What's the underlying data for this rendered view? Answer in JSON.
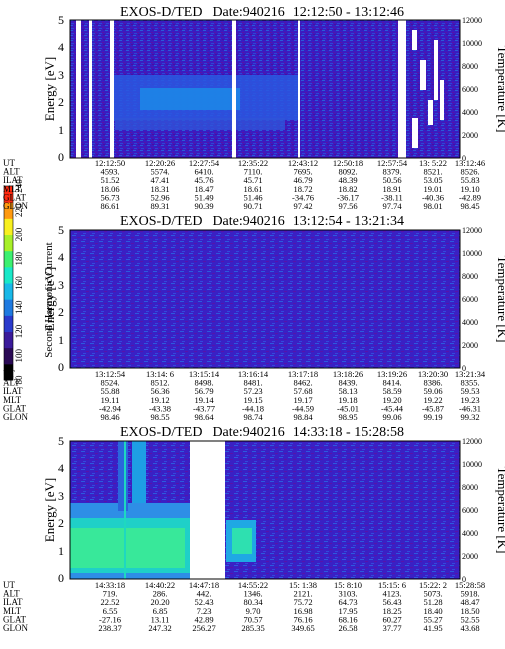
{
  "colorbar": {
    "label": "Second Harmonic Current",
    "ticks": [
      "80",
      "100",
      "120",
      "140",
      "160",
      "180",
      "200",
      "220",
      "240"
    ],
    "colors": [
      "#000000",
      "#2a0a55",
      "#3a1a9a",
      "#2a3acc",
      "#1f7ae0",
      "#19b8e8",
      "#19e8c8",
      "#3cf070",
      "#a8f028",
      "#f8f020",
      "#ff9a10",
      "#ff2a10"
    ]
  },
  "panels": [
    {
      "title": "EXOS-D/TED",
      "date": "Date:940216",
      "time_range": "12:12:50 - 13:12:46",
      "ylabel": "Energy [eV]",
      "y2label": "Temperature [K]",
      "yticks": [
        "0",
        "1",
        "2",
        "3",
        "4",
        "5"
      ],
      "y2ticks": [
        "0",
        "2000",
        "4000",
        "6000",
        "8000",
        "10000",
        "12000"
      ],
      "row_labels": [
        "UT",
        "ALT",
        "ILAT",
        "MLT",
        "GLAT",
        "GLON"
      ],
      "columns": [
        [
          "12:12:50",
          "4593.",
          "51.52",
          "18.06",
          "56.73",
          "86.61"
        ],
        [
          "12:20:26",
          "5574.",
          "47.41",
          "18.31",
          "52.96",
          "89.31"
        ],
        [
          "12:27:54",
          "6410.",
          "45.76",
          "18.47",
          "51.49",
          "90.39"
        ],
        [
          "12:35:22",
          "7110.",
          "45.71",
          "18.61",
          "51.46",
          "90.71"
        ],
        [
          "12:43:12",
          "7695.",
          "46.79",
          "18.72",
          "-34.76",
          "97.42"
        ],
        [
          "12:50:18",
          "8092.",
          "48.39",
          "18.82",
          "-36.17",
          "97.56"
        ],
        [
          "12:57:54",
          "8379.",
          "50.56",
          "18.91",
          "-38.11",
          "97.74"
        ],
        [
          "13: 5:22",
          "8521.",
          "53.05",
          "19.01",
          "-40.36",
          "98.01"
        ],
        [
          "13:12:46",
          "8526.",
          "55.83",
          "19.10",
          "-42.89",
          "98.45"
        ]
      ]
    },
    {
      "title": "EXOS-D/TED",
      "date": "Date:940216",
      "time_range": "13:12:54 - 13:21:34",
      "ylabel": "Energy [eV]",
      "y2label": "Temperature [K]",
      "yticks": [
        "0",
        "1",
        "2",
        "3",
        "4",
        "5"
      ],
      "y2ticks": [
        "0",
        "2000",
        "4000",
        "6000",
        "8000",
        "10000",
        "12000"
      ],
      "row_labels": [
        "UT",
        "ALT",
        "ILAT",
        "MLT",
        "GLAT",
        "GLON"
      ],
      "columns": [
        [
          "13:12:54",
          "8524.",
          "55.88",
          "19.11",
          "-42.94",
          "98.46"
        ],
        [
          "13:14: 6",
          "8512.",
          "56.36",
          "19.12",
          "-43.38",
          "98.55"
        ],
        [
          "13:15:14",
          "8498.",
          "56.79",
          "19.14",
          "-43.77",
          "98.64"
        ],
        [
          "13:16:14",
          "8481.",
          "57.23",
          "19.15",
          "-44.18",
          "98.74"
        ],
        [
          "13:17:18",
          "8462.",
          "57.68",
          "19.17",
          "-44.59",
          "98.84"
        ],
        [
          "13:18:26",
          "8439.",
          "58.13",
          "19.18",
          "-45.01",
          "98.95"
        ],
        [
          "13:19:26",
          "8414.",
          "58.59",
          "19.20",
          "-45.44",
          "99.06"
        ],
        [
          "13:20:30",
          "8386.",
          "59.06",
          "19.22",
          "-45.87",
          "99.19"
        ],
        [
          "13:21:34",
          "8355.",
          "59.53",
          "19.23",
          "-46.31",
          "99.32"
        ]
      ]
    },
    {
      "title": "EXOS-D/TED",
      "date": "Date:940216",
      "time_range": "14:33:18 - 15:28:58",
      "ylabel": "Energy [eV]",
      "y2label": "Temperature [K]",
      "yticks": [
        "0",
        "1",
        "2",
        "3",
        "4",
        "5"
      ],
      "y2ticks": [
        "0",
        "2000",
        "4000",
        "6000",
        "8000",
        "10000",
        "12000"
      ],
      "row_labels": [
        "UT",
        "ALT",
        "ILAT",
        "MLT",
        "GLAT",
        "GLON"
      ],
      "columns": [
        [
          "14:33:18",
          "719.",
          "22.52",
          "6.55",
          "-27.16",
          "238.37"
        ],
        [
          "14:40:22",
          "286.",
          "20.20",
          "6.85",
          "13.11",
          "247.32"
        ],
        [
          "14:47:18",
          "442.",
          "52.43",
          "7.23",
          "42.89",
          "256.27"
        ],
        [
          "14:55:22",
          "1346.",
          "80.34",
          "9.70",
          "70.57",
          "285.35"
        ],
        [
          "15: 1:38",
          "2121.",
          "75.72",
          "16.98",
          "76.16",
          "349.65"
        ],
        [
          "15: 8:10",
          "3103.",
          "64.73",
          "17.95",
          "68.16",
          "26.58"
        ],
        [
          "15:15: 6",
          "4123.",
          "56.43",
          "18.25",
          "60.27",
          "37.77"
        ],
        [
          "15:22: 2",
          "5073.",
          "51.28",
          "18.40",
          "55.27",
          "41.95"
        ],
        [
          "15:28:58",
          "5918.",
          "48.47",
          "18.50",
          "52.55",
          "43.68"
        ]
      ]
    }
  ],
  "chart_data": [
    {
      "type": "heatmap",
      "title": "EXOS-D/TED Date:940216 12:12:50 - 13:12:46",
      "xlabel": "UT",
      "ylabel": "Energy [eV]",
      "y2label": "Temperature [K]",
      "ylim": [
        0,
        5
      ],
      "y2lim": [
        0,
        12000
      ],
      "x": [
        "12:12:50",
        "12:20:26",
        "12:27:54",
        "12:35:22",
        "12:43:12",
        "12:50:18",
        "12:57:54",
        "13: 5:22",
        "13:12:46"
      ],
      "colorbar": {
        "label": "Second Harmonic Current",
        "range": [
          80,
          240
        ]
      },
      "regions": [
        {
          "x_from": 0.1,
          "x_to": 0.58,
          "y_from": 1.4,
          "y_to": 2.9,
          "level": 150
        },
        {
          "x_from": 0.2,
          "x_to": 0.45,
          "y_from": 1.8,
          "y_to": 2.5,
          "level": 160
        },
        {
          "x_from": 0.0,
          "x_to": 1.0,
          "y_from": 0.0,
          "y_to": 5.0,
          "level": 115
        }
      ],
      "gaps": [
        [
          0.015,
          0.03
        ],
        [
          0.06,
          0.075
        ],
        [
          0.475,
          0.487
        ],
        [
          0.79,
          0.84
        ]
      ]
    },
    {
      "type": "heatmap",
      "title": "EXOS-D/TED Date:940216 13:12:54 - 13:21:34",
      "xlabel": "UT",
      "ylabel": "Energy [eV]",
      "y2label": "Temperature [K]",
      "ylim": [
        0,
        5
      ],
      "y2lim": [
        0,
        12000
      ],
      "x": [
        "13:12:54",
        "13:14: 6",
        "13:15:14",
        "13:16:14",
        "13:17:18",
        "13:18:26",
        "13:19:26",
        "13:20:30",
        "13:21:34"
      ],
      "colorbar": {
        "label": "Second Harmonic Current",
        "range": [
          80,
          240
        ]
      },
      "regions": [
        {
          "x_from": 0.0,
          "x_to": 1.0,
          "y_from": 0.0,
          "y_to": 5.0,
          "level": 115
        }
      ],
      "gaps": []
    },
    {
      "type": "heatmap",
      "title": "EXOS-D/TED Date:940216 14:33:18 - 15:28:58",
      "xlabel": "UT",
      "ylabel": "Energy [eV]",
      "y2label": "Temperature [K]",
      "ylim": [
        0,
        5
      ],
      "y2lim": [
        0,
        12000
      ],
      "x": [
        "14:33:18",
        "14:40:22",
        "14:47:18",
        "14:55:22",
        "15: 1:38",
        "15: 8:10",
        "15:15: 6",
        "15:22: 2",
        "15:28:58"
      ],
      "colorbar": {
        "label": "Second Harmonic Current",
        "range": [
          80,
          240
        ]
      },
      "regions": [
        {
          "x_from": 0.0,
          "x_to": 0.36,
          "y_from": 0.0,
          "y_to": 2.8,
          "level": 160
        },
        {
          "x_from": 0.0,
          "x_to": 0.36,
          "y_from": 0.3,
          "y_to": 2.0,
          "level": 180
        },
        {
          "x_from": 0.15,
          "x_to": 0.28,
          "y_from": 0.0,
          "y_to": 5.0,
          "level": 150
        },
        {
          "x_from": 0.47,
          "x_to": 0.58,
          "y_from": 0.3,
          "y_to": 1.9,
          "level": 160
        },
        {
          "x_from": 0.0,
          "x_to": 1.0,
          "y_from": 0.0,
          "y_to": 5.0,
          "level": 115
        }
      ],
      "gaps": [
        [
          0.37,
          0.46
        ]
      ]
    }
  ]
}
